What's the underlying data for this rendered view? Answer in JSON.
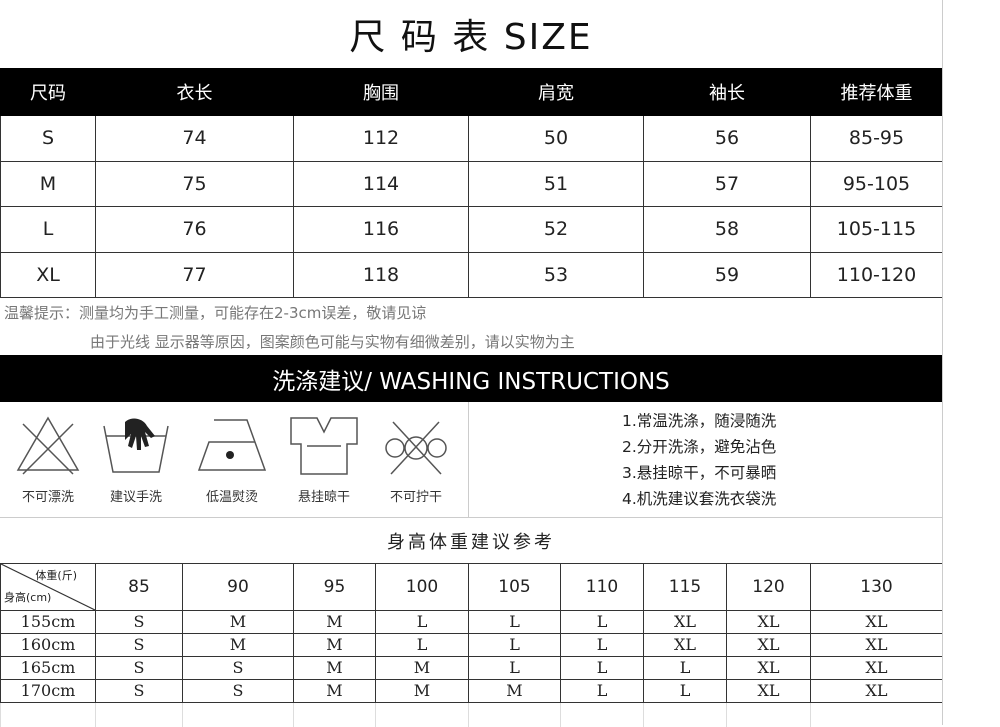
{
  "title": "尺 码 表 SIZE",
  "size_table": {
    "headers": [
      "尺码",
      "衣长",
      "胸围",
      "肩宽",
      "袖长",
      "推荐体重"
    ],
    "rows": [
      [
        "S",
        "74",
        "112",
        "50",
        "56",
        "85-95"
      ],
      [
        "M",
        "75",
        "114",
        "51",
        "57",
        "95-105"
      ],
      [
        "L",
        "76",
        "116",
        "52",
        "58",
        "105-115"
      ],
      [
        "XL",
        "77",
        "118",
        "53",
        "59",
        "110-120"
      ]
    ]
  },
  "notes": [
    "温馨提示：测量均为手工测量，可能存在2-3cm误差，敬请见谅",
    "由于光线 显示器等原因，图案颜色可能与实物有细微差别，请以实物为主"
  ],
  "washing": {
    "title": "洗涤建议/ WASHING INSTRUCTIONS",
    "icons": [
      {
        "name": "no-bleach-icon",
        "label": "不可漂洗"
      },
      {
        "name": "hand-wash-icon",
        "label": "建议手洗"
      },
      {
        "name": "low-iron-icon",
        "label": "低温熨烫"
      },
      {
        "name": "hang-dry-icon",
        "label": "悬挂晾干"
      },
      {
        "name": "no-wring-icon",
        "label": "不可拧干"
      }
    ],
    "tips": [
      "1.常温洗涤，随浸随洗",
      "2.分开洗涤，避免沾色",
      "3.悬挂晾干，不可暴晒",
      "4.机洗建议套洗衣袋洗"
    ]
  },
  "reference": {
    "title": "身高体重建议参考",
    "weight_label": "体重(斤)",
    "height_label": "身高(cm)",
    "weights": [
      "85",
      "90",
      "95",
      "100",
      "105",
      "110",
      "115",
      "120",
      "130"
    ],
    "rows": [
      {
        "height": "155cm",
        "sizes": [
          "S",
          "M",
          "M",
          "L",
          "L",
          "L",
          "XL",
          "XL",
          "XL"
        ]
      },
      {
        "height": "160cm",
        "sizes": [
          "S",
          "M",
          "M",
          "L",
          "L",
          "L",
          "XL",
          "XL",
          "XL"
        ]
      },
      {
        "height": "165cm",
        "sizes": [
          "S",
          "S",
          "M",
          "M",
          "L",
          "L",
          "L",
          "XL",
          "XL"
        ]
      },
      {
        "height": "170cm",
        "sizes": [
          "S",
          "S",
          "M",
          "M",
          "M",
          "L",
          "L",
          "XL",
          "XL"
        ]
      }
    ]
  }
}
